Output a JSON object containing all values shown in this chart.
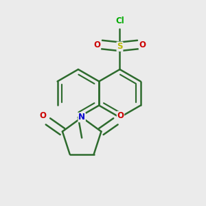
{
  "background_color": "#ebebeb",
  "bond_color": "#2d6b2d",
  "atom_colors": {
    "S": "#b8b800",
    "O": "#cc0000",
    "Cl": "#00aa00",
    "N": "#0000cc"
  },
  "line_width": 1.8,
  "fig_size": [
    3.0,
    3.0
  ],
  "dpi": 100
}
